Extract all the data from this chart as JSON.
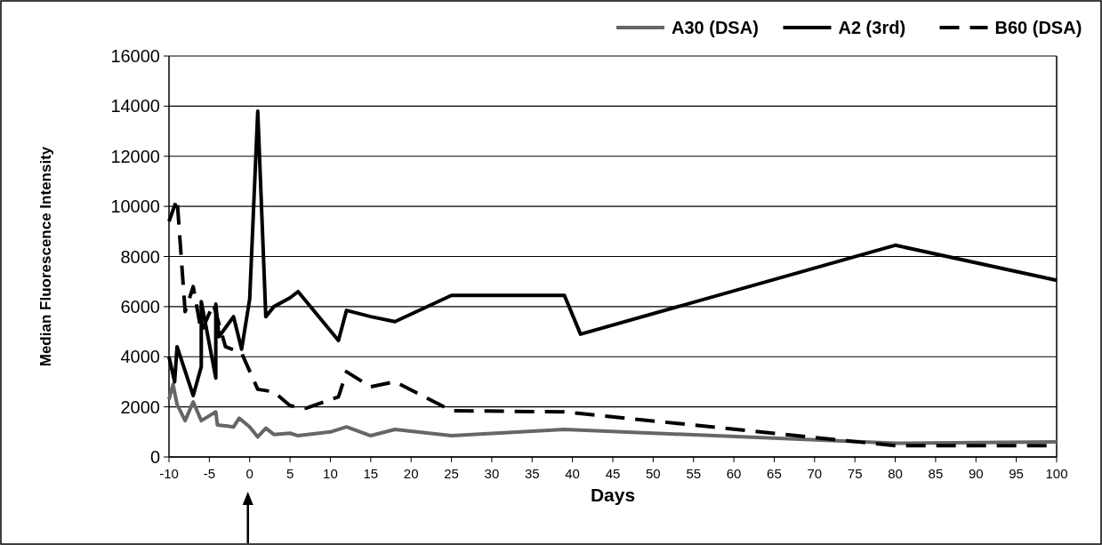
{
  "chart_data": {
    "type": "line",
    "xlabel": "Days",
    "ylabel": "Median Fluorescence Intensity",
    "xlim": [
      -10,
      100
    ],
    "xticks": [
      -10,
      -5,
      0,
      5,
      10,
      15,
      20,
      25,
      30,
      35,
      40,
      45,
      50,
      55,
      60,
      65,
      70,
      75,
      80,
      85,
      90,
      95,
      100
    ],
    "ylim": [
      0,
      16000
    ],
    "yticks": [
      0,
      2000,
      4000,
      6000,
      8000,
      10000,
      12000,
      14000,
      16000
    ],
    "grid": "y",
    "legend": "top right",
    "marker": "none",
    "series": [
      {
        "name": "A30 (DSA)",
        "color": "#666666",
        "line_style": "solid",
        "x": [
          -10,
          -9.5,
          -9,
          -8,
          -7,
          -6,
          -4.2,
          -4,
          -2,
          -1.3,
          0,
          1,
          2,
          3,
          5,
          6,
          10,
          12,
          15,
          18,
          25,
          39,
          80,
          100
        ],
        "values": [
          2300,
          2900,
          2100,
          1450,
          2200,
          1450,
          1800,
          1280,
          1200,
          1550,
          1200,
          800,
          1150,
          900,
          950,
          850,
          1000,
          1200,
          850,
          1100,
          850,
          1100,
          550,
          600
        ]
      },
      {
        "name": "A2 (3rd)",
        "color": "#000000",
        "line_style": "solid",
        "x": [
          -10,
          -9.3,
          -9,
          -7,
          -6,
          -6,
          -4.2,
          -4.2,
          -3.8,
          -2,
          -1,
          0,
          1,
          2,
          3,
          5,
          6,
          11,
          12,
          15,
          18,
          25,
          39,
          41,
          80,
          100
        ],
        "values": [
          4000,
          3000,
          4400,
          2450,
          3600,
          6200,
          3150,
          6100,
          4800,
          5600,
          4300,
          6300,
          13800,
          5600,
          6000,
          6350,
          6600,
          4650,
          5850,
          5600,
          5400,
          6450,
          6450,
          4900,
          8450,
          7050
        ]
      },
      {
        "name": "B60 (DSA)",
        "color": "#000000",
        "line_style": "dashed",
        "x": [
          -10,
          -9,
          -8,
          -7,
          -6,
          -4.5,
          -3,
          -1,
          1,
          3,
          5,
          7,
          11,
          12,
          15,
          18,
          25,
          39,
          80,
          100
        ],
        "values": [
          9400,
          10300,
          5800,
          6800,
          5000,
          6100,
          4400,
          4150,
          2700,
          2600,
          2050,
          1950,
          2400,
          3400,
          2800,
          3000,
          1850,
          1800,
          450,
          450
        ]
      }
    ]
  }
}
